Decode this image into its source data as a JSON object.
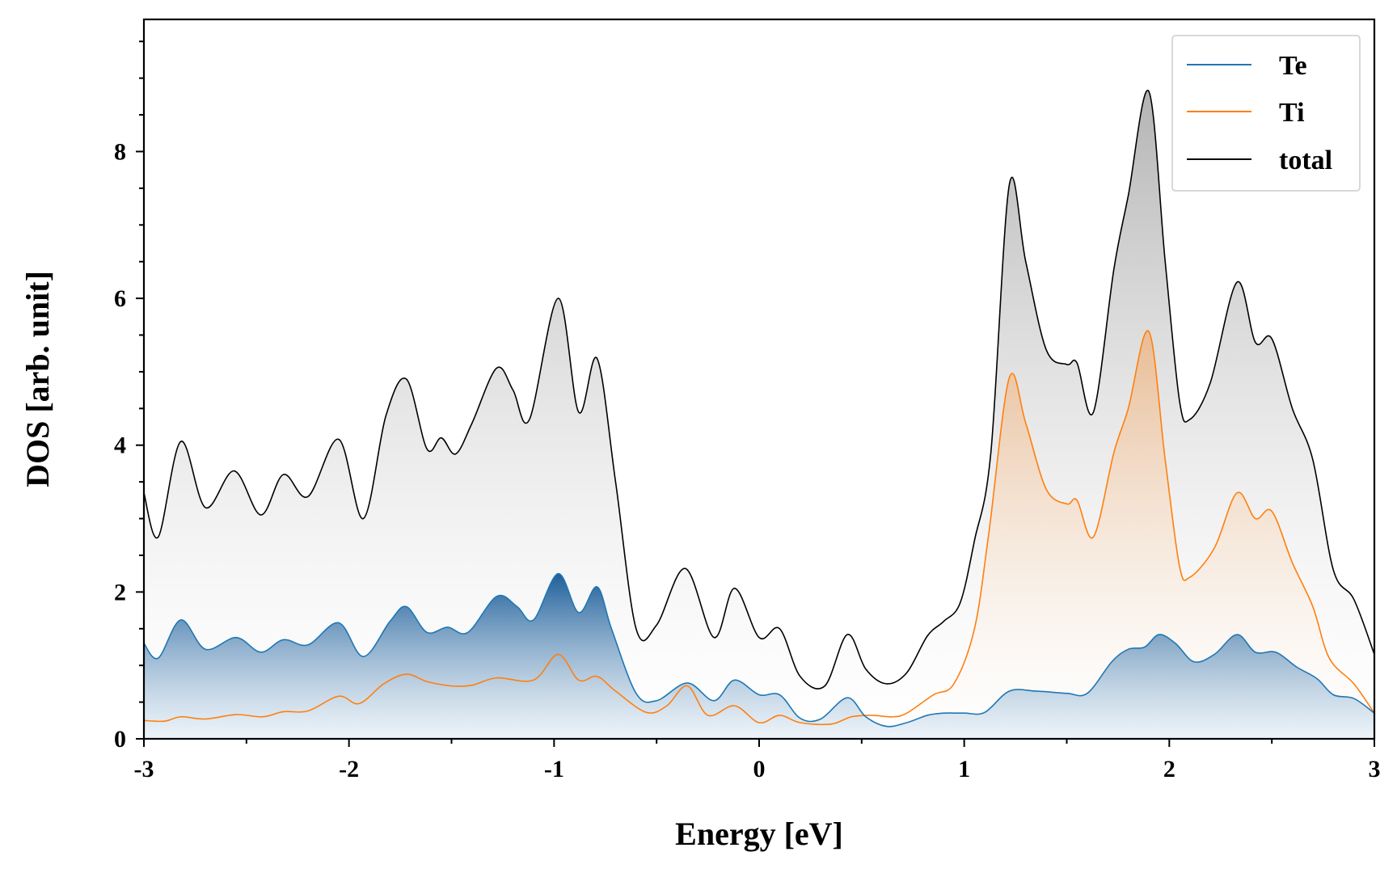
{
  "chart_data": {
    "type": "area",
    "xlabel": "Energy [eV]",
    "ylabel": "DOS [arb. unit]",
    "xlim": [
      -3,
      3
    ],
    "ylim": [
      0,
      9.8
    ],
    "x_ticks": [
      -3,
      -2,
      -1,
      0,
      1,
      2,
      3
    ],
    "x_tick_labels": [
      "-3",
      "-2",
      "-1",
      "0",
      "1",
      "2",
      "3"
    ],
    "y_ticks": [
      0,
      2,
      4,
      6,
      8
    ],
    "y_tick_labels": [
      "0",
      "2",
      "4",
      "6",
      "8"
    ],
    "grid": false,
    "legend_position": "top-right",
    "series": [
      {
        "name": "Te",
        "color": "#1f77b4",
        "points": [
          [
            -3.0,
            1.3
          ],
          [
            -2.93,
            1.1
          ],
          [
            -2.82,
            1.62
          ],
          [
            -2.7,
            1.22
          ],
          [
            -2.55,
            1.38
          ],
          [
            -2.43,
            1.18
          ],
          [
            -2.32,
            1.35
          ],
          [
            -2.2,
            1.28
          ],
          [
            -2.05,
            1.58
          ],
          [
            -1.93,
            1.12
          ],
          [
            -1.8,
            1.6
          ],
          [
            -1.72,
            1.8
          ],
          [
            -1.62,
            1.45
          ],
          [
            -1.52,
            1.52
          ],
          [
            -1.42,
            1.45
          ],
          [
            -1.28,
            1.94
          ],
          [
            -1.18,
            1.8
          ],
          [
            -1.1,
            1.62
          ],
          [
            -0.98,
            2.25
          ],
          [
            -0.88,
            1.72
          ],
          [
            -0.79,
            2.07
          ],
          [
            -0.72,
            1.5
          ],
          [
            -0.6,
            0.62
          ],
          [
            -0.5,
            0.52
          ],
          [
            -0.35,
            0.76
          ],
          [
            -0.22,
            0.52
          ],
          [
            -0.12,
            0.8
          ],
          [
            0.0,
            0.6
          ],
          [
            0.1,
            0.6
          ],
          [
            0.2,
            0.28
          ],
          [
            0.3,
            0.27
          ],
          [
            0.43,
            0.56
          ],
          [
            0.52,
            0.3
          ],
          [
            0.62,
            0.17
          ],
          [
            0.72,
            0.22
          ],
          [
            0.82,
            0.32
          ],
          [
            0.9,
            0.35
          ],
          [
            1.0,
            0.35
          ],
          [
            1.1,
            0.36
          ],
          [
            1.22,
            0.65
          ],
          [
            1.35,
            0.65
          ],
          [
            1.5,
            0.62
          ],
          [
            1.6,
            0.62
          ],
          [
            1.72,
            1.05
          ],
          [
            1.8,
            1.22
          ],
          [
            1.88,
            1.25
          ],
          [
            1.95,
            1.42
          ],
          [
            2.03,
            1.3
          ],
          [
            2.12,
            1.05
          ],
          [
            2.22,
            1.15
          ],
          [
            2.33,
            1.42
          ],
          [
            2.42,
            1.18
          ],
          [
            2.52,
            1.18
          ],
          [
            2.62,
            0.98
          ],
          [
            2.72,
            0.82
          ],
          [
            2.8,
            0.6
          ],
          [
            2.9,
            0.55
          ],
          [
            3.0,
            0.35
          ]
        ]
      },
      {
        "name": "Ti",
        "color": "#ff7f0e",
        "points": [
          [
            -3.0,
            0.25
          ],
          [
            -2.9,
            0.24
          ],
          [
            -2.82,
            0.3
          ],
          [
            -2.7,
            0.27
          ],
          [
            -2.55,
            0.33
          ],
          [
            -2.42,
            0.3
          ],
          [
            -2.32,
            0.37
          ],
          [
            -2.2,
            0.38
          ],
          [
            -2.05,
            0.58
          ],
          [
            -1.95,
            0.48
          ],
          [
            -1.83,
            0.75
          ],
          [
            -1.72,
            0.88
          ],
          [
            -1.62,
            0.78
          ],
          [
            -1.5,
            0.72
          ],
          [
            -1.4,
            0.73
          ],
          [
            -1.28,
            0.83
          ],
          [
            -1.1,
            0.8
          ],
          [
            -0.98,
            1.15
          ],
          [
            -0.88,
            0.8
          ],
          [
            -0.79,
            0.85
          ],
          [
            -0.7,
            0.65
          ],
          [
            -0.55,
            0.36
          ],
          [
            -0.45,
            0.45
          ],
          [
            -0.35,
            0.72
          ],
          [
            -0.25,
            0.32
          ],
          [
            -0.12,
            0.45
          ],
          [
            0.0,
            0.22
          ],
          [
            0.1,
            0.32
          ],
          [
            0.2,
            0.22
          ],
          [
            0.35,
            0.2
          ],
          [
            0.45,
            0.3
          ],
          [
            0.55,
            0.32
          ],
          [
            0.65,
            0.3
          ],
          [
            0.72,
            0.35
          ],
          [
            0.85,
            0.6
          ],
          [
            0.95,
            0.75
          ],
          [
            1.05,
            1.5
          ],
          [
            1.12,
            2.8
          ],
          [
            1.22,
            4.92
          ],
          [
            1.3,
            4.3
          ],
          [
            1.4,
            3.4
          ],
          [
            1.5,
            3.2
          ],
          [
            1.55,
            3.25
          ],
          [
            1.63,
            2.75
          ],
          [
            1.73,
            3.9
          ],
          [
            1.8,
            4.5
          ],
          [
            1.9,
            5.55
          ],
          [
            1.98,
            3.8
          ],
          [
            2.05,
            2.35
          ],
          [
            2.1,
            2.2
          ],
          [
            2.22,
            2.6
          ],
          [
            2.33,
            3.35
          ],
          [
            2.42,
            3.0
          ],
          [
            2.5,
            3.1
          ],
          [
            2.6,
            2.4
          ],
          [
            2.7,
            1.8
          ],
          [
            2.78,
            1.1
          ],
          [
            2.9,
            0.75
          ],
          [
            3.0,
            0.35
          ]
        ]
      },
      {
        "name": "total",
        "color": "#000000",
        "points": [
          [
            -3.0,
            3.35
          ],
          [
            -2.93,
            2.75
          ],
          [
            -2.82,
            4.05
          ],
          [
            -2.7,
            3.15
          ],
          [
            -2.56,
            3.65
          ],
          [
            -2.43,
            3.05
          ],
          [
            -2.32,
            3.6
          ],
          [
            -2.2,
            3.3
          ],
          [
            -2.05,
            4.08
          ],
          [
            -1.93,
            3.0
          ],
          [
            -1.82,
            4.4
          ],
          [
            -1.72,
            4.9
          ],
          [
            -1.62,
            3.95
          ],
          [
            -1.55,
            4.1
          ],
          [
            -1.48,
            3.88
          ],
          [
            -1.4,
            4.3
          ],
          [
            -1.28,
            5.05
          ],
          [
            -1.2,
            4.75
          ],
          [
            -1.12,
            4.35
          ],
          [
            -0.98,
            6.0
          ],
          [
            -0.88,
            4.45
          ],
          [
            -0.79,
            5.18
          ],
          [
            -0.7,
            3.5
          ],
          [
            -0.6,
            1.5
          ],
          [
            -0.5,
            1.55
          ],
          [
            -0.36,
            2.32
          ],
          [
            -0.22,
            1.38
          ],
          [
            -0.12,
            2.05
          ],
          [
            0.0,
            1.38
          ],
          [
            0.1,
            1.5
          ],
          [
            0.2,
            0.85
          ],
          [
            0.32,
            0.72
          ],
          [
            0.43,
            1.42
          ],
          [
            0.52,
            0.95
          ],
          [
            0.62,
            0.75
          ],
          [
            0.72,
            0.9
          ],
          [
            0.82,
            1.4
          ],
          [
            0.9,
            1.6
          ],
          [
            0.98,
            1.85
          ],
          [
            1.05,
            2.7
          ],
          [
            1.13,
            3.9
          ],
          [
            1.22,
            7.55
          ],
          [
            1.3,
            6.5
          ],
          [
            1.4,
            5.3
          ],
          [
            1.5,
            5.1
          ],
          [
            1.55,
            5.12
          ],
          [
            1.63,
            4.45
          ],
          [
            1.73,
            6.4
          ],
          [
            1.8,
            7.4
          ],
          [
            1.9,
            8.82
          ],
          [
            1.98,
            6.5
          ],
          [
            2.05,
            4.6
          ],
          [
            2.1,
            4.35
          ],
          [
            2.2,
            4.85
          ],
          [
            2.33,
            6.22
          ],
          [
            2.42,
            5.4
          ],
          [
            2.5,
            5.45
          ],
          [
            2.6,
            4.5
          ],
          [
            2.7,
            3.8
          ],
          [
            2.8,
            2.3
          ],
          [
            2.9,
            1.9
          ],
          [
            3.0,
            1.15
          ]
        ]
      }
    ]
  }
}
